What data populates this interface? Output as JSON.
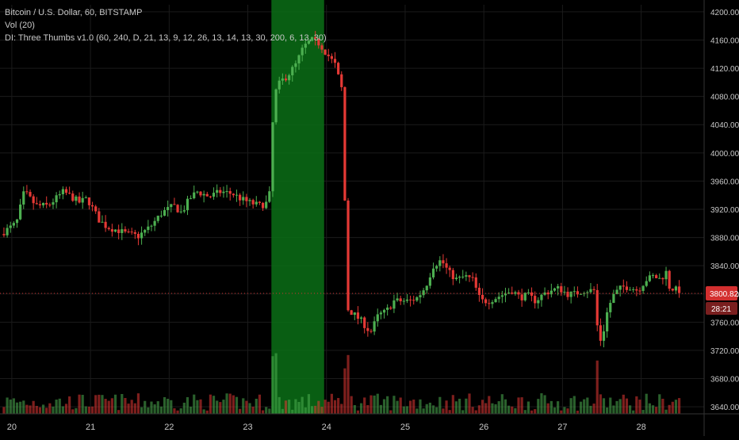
{
  "legend": {
    "symbol": "Bitcoin / U.S. Dollar, 60, BITSTAMP",
    "volume": "Vol (20)",
    "indicator": "DI: Three Thumbs v1.0 (60, 240, D, 21, 13, 9, 12, 26, 13, 14, 13, 30, 200, 6, 13, 30)"
  },
  "price_label": {
    "value": "3800.82",
    "countdown": "28:21"
  },
  "colors": {
    "background": "#000000",
    "up": "#4caf50",
    "down": "#e53935",
    "highlight": "#0a6e16",
    "price_tag": "#d32f2f",
    "grid": "#1b1b1b",
    "text": "#c8c8c8"
  },
  "chart_data": {
    "type": "candlestick",
    "x_ticks": [
      "20",
      "21",
      "22",
      "23",
      "24",
      "25",
      "26",
      "27",
      "28"
    ],
    "y_ticks": [
      3640,
      3680,
      3720,
      3760,
      3800,
      3840,
      3880,
      3920,
      3960,
      4000,
      4040,
      4080,
      4120,
      4160,
      4200
    ],
    "ylim": [
      3630,
      4210
    ],
    "xlim_days": [
      19.85,
      28.8
    ],
    "highlight_range": [
      23.3,
      23.97
    ],
    "grid": true,
    "series": [
      {
        "name": "price",
        "points": [
          [
            19.9,
            3885
          ],
          [
            20.1,
            3900
          ],
          [
            20.2,
            3945
          ],
          [
            20.35,
            3925
          ],
          [
            20.5,
            3925
          ],
          [
            20.7,
            3945
          ],
          [
            20.9,
            3930
          ],
          [
            21.0,
            3935
          ],
          [
            21.15,
            3905
          ],
          [
            21.25,
            3895
          ],
          [
            21.4,
            3890
          ],
          [
            21.5,
            3885
          ],
          [
            21.65,
            3882
          ],
          [
            21.8,
            3895
          ],
          [
            21.95,
            3915
          ],
          [
            22.1,
            3925
          ],
          [
            22.2,
            3915
          ],
          [
            22.3,
            3935
          ],
          [
            22.4,
            3945
          ],
          [
            22.55,
            3938
          ],
          [
            22.7,
            3945
          ],
          [
            22.85,
            3942
          ],
          [
            22.95,
            3935
          ],
          [
            23.05,
            3930
          ],
          [
            23.2,
            3925
          ],
          [
            23.3,
            3930
          ],
          [
            23.33,
            3950
          ],
          [
            23.37,
            4080
          ],
          [
            23.45,
            4100
          ],
          [
            23.55,
            4110
          ],
          [
            23.65,
            4125
          ],
          [
            23.75,
            4150
          ],
          [
            23.85,
            4160
          ],
          [
            23.95,
            4155
          ],
          [
            24.05,
            4140
          ],
          [
            24.15,
            4125
          ],
          [
            24.25,
            4085
          ],
          [
            24.3,
            3780
          ],
          [
            24.4,
            3770
          ],
          [
            24.5,
            3760
          ],
          [
            24.6,
            3745
          ],
          [
            24.7,
            3770
          ],
          [
            24.8,
            3775
          ],
          [
            24.9,
            3790
          ],
          [
            25.0,
            3790
          ],
          [
            25.1,
            3790
          ],
          [
            25.2,
            3795
          ],
          [
            25.3,
            3810
          ],
          [
            25.4,
            3840
          ],
          [
            25.5,
            3848
          ],
          [
            25.6,
            3830
          ],
          [
            25.7,
            3820
          ],
          [
            25.8,
            3825
          ],
          [
            25.9,
            3820
          ],
          [
            26.0,
            3790
          ],
          [
            26.1,
            3790
          ],
          [
            26.2,
            3795
          ],
          [
            26.3,
            3800
          ],
          [
            26.4,
            3805
          ],
          [
            26.5,
            3795
          ],
          [
            26.6,
            3798
          ],
          [
            26.7,
            3790
          ],
          [
            26.8,
            3800
          ],
          [
            26.9,
            3805
          ],
          [
            27.0,
            3808
          ],
          [
            27.1,
            3800
          ],
          [
            27.2,
            3800
          ],
          [
            27.3,
            3805
          ],
          [
            27.45,
            3805
          ],
          [
            27.5,
            3730
          ],
          [
            27.55,
            3740
          ],
          [
            27.62,
            3780
          ],
          [
            27.7,
            3800
          ],
          [
            27.8,
            3810
          ],
          [
            27.9,
            3810
          ],
          [
            28.0,
            3805
          ],
          [
            28.1,
            3820
          ],
          [
            28.2,
            3825
          ],
          [
            28.3,
            3820
          ],
          [
            28.35,
            3835
          ],
          [
            28.4,
            3810
          ],
          [
            28.5,
            3805
          ]
        ]
      }
    ]
  }
}
